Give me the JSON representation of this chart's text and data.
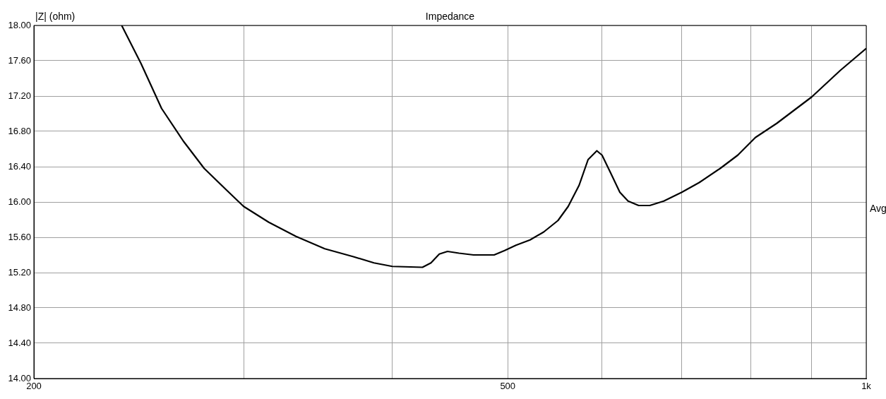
{
  "chart_data": {
    "type": "line",
    "title": "Impedance",
    "ylabel": "|Z| (ohm)",
    "annotations": [
      "Avg"
    ],
    "color": "#000000",
    "marker": "none",
    "line_style": "solid",
    "log": "x",
    "grid": true,
    "legend": false,
    "xlim": [
      200,
      1000
    ],
    "ylim": [
      14,
      18
    ],
    "xticks": [
      {
        "value": 200,
        "label": "200"
      },
      {
        "value": 300,
        "label": null
      },
      {
        "value": 400,
        "label": null
      },
      {
        "value": 500,
        "label": "500"
      },
      {
        "value": 600,
        "label": null
      },
      {
        "value": 700,
        "label": null
      },
      {
        "value": 800,
        "label": null
      },
      {
        "value": 900,
        "label": null
      },
      {
        "value": 1000,
        "label": "1k"
      }
    ],
    "yticks": [
      {
        "value": 14,
        "label": "14.00"
      },
      {
        "value": 14.4,
        "label": "14.40"
      },
      {
        "value": 14.8,
        "label": "14.80"
      },
      {
        "value": 15.2,
        "label": "15.20"
      },
      {
        "value": 15.6,
        "label": "15.60"
      },
      {
        "value": 16,
        "label": "16.00"
      },
      {
        "value": 16.4,
        "label": "16.40"
      },
      {
        "value": 16.8,
        "label": "16.80"
      },
      {
        "value": 17.2,
        "label": "17.20"
      },
      {
        "value": 17.6,
        "label": "17.60"
      },
      {
        "value": 18,
        "label": "18.00"
      }
    ],
    "x": [
      237,
      246,
      256,
      267,
      278,
      290,
      300,
      315,
      332,
      351,
      371,
      386,
      400,
      424,
      431,
      438,
      445,
      455,
      468,
      487,
      497,
      508,
      522,
      536,
      551,
      562,
      574,
      584,
      594,
      600,
      610,
      621,
      631,
      644,
      658,
      676,
      700,
      724,
      754,
      780,
      807,
      841,
      900,
      951,
      1000
    ],
    "values": [
      18.0,
      17.57,
      17.06,
      16.69,
      16.38,
      16.14,
      15.95,
      15.77,
      15.61,
      15.47,
      15.38,
      15.31,
      15.27,
      15.26,
      15.31,
      15.41,
      15.44,
      15.42,
      15.4,
      15.4,
      15.45,
      15.51,
      15.57,
      15.66,
      15.79,
      15.95,
      16.19,
      16.48,
      16.58,
      16.53,
      16.33,
      16.11,
      16.01,
      15.96,
      15.96,
      16.01,
      16.11,
      16.22,
      16.38,
      16.53,
      16.73,
      16.89,
      17.19,
      17.49,
      17.74
    ]
  }
}
